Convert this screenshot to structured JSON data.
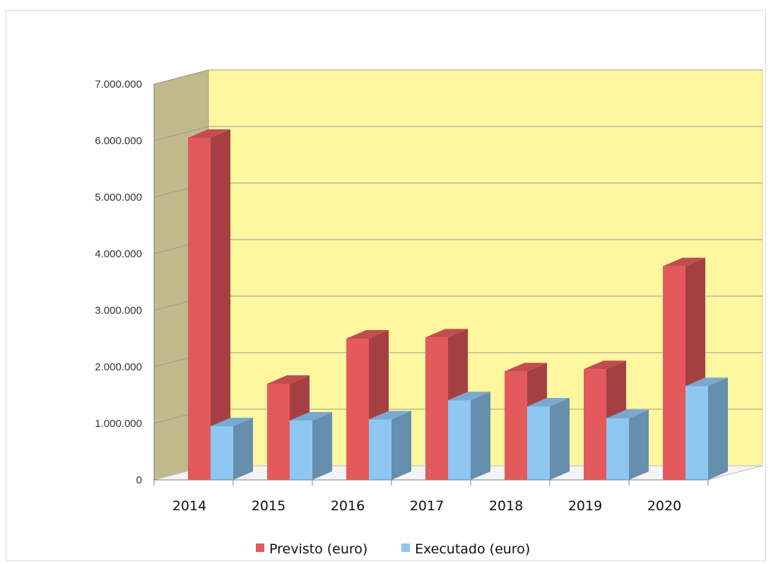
{
  "chart_data": {
    "type": "bar",
    "categories": [
      "2014",
      "2015",
      "2016",
      "2017",
      "2018",
      "2019",
      "2020"
    ],
    "series": [
      {
        "name": "Previsto (euro)",
        "values": [
          6050000,
          1700000,
          2500000,
          2520000,
          1920000,
          1960000,
          3780000
        ],
        "color": "#e4595c"
      },
      {
        "name": "Executado (euro)",
        "values": [
          950000,
          1050000,
          1070000,
          1410000,
          1300000,
          1090000,
          1660000
        ],
        "color": "#8ec7f2"
      }
    ],
    "ylim": [
      0,
      7000000
    ],
    "yticks": [
      0,
      1000000,
      2000000,
      3000000,
      4000000,
      5000000,
      6000000,
      7000000
    ],
    "ytick_labels": [
      "0",
      "1.000.000",
      "2.000.000",
      "3.000.000",
      "4.000.000",
      "5.000.000",
      "6.000.000",
      "7.000.000"
    ],
    "title": "",
    "xlabel": "",
    "ylabel": "",
    "grid": true,
    "legend_position": "bottom",
    "colors": {
      "back_wall": "#fff6a0",
      "side_wall": "#c0b98a",
      "gridline": "#9a9a9a"
    }
  }
}
